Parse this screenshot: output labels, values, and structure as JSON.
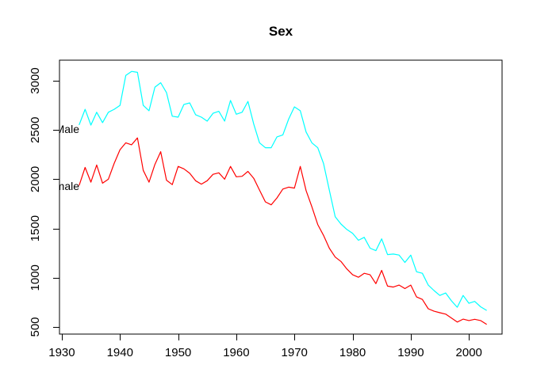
{
  "title": "Sex",
  "colors": {
    "background": "#ffffff",
    "axis": "#000000",
    "text": "#000000",
    "male_line": "#00ffff",
    "female_line": "#ff0000"
  },
  "chart_data": {
    "type": "line",
    "title": "Sex",
    "xlabel": "",
    "ylabel": "",
    "grid": false,
    "box": true,
    "xlim": [
      1929.6,
      2005.7
    ],
    "ylim": [
      427.7,
      3209.0
    ],
    "x_ticks": [
      1930,
      1940,
      1950,
      1960,
      1970,
      1980,
      1990,
      2000
    ],
    "y_ticks": [
      500,
      1000,
      1500,
      2000,
      2500,
      3000
    ],
    "years": [
      1933,
      1934,
      1935,
      1936,
      1937,
      1938,
      1939,
      1940,
      1941,
      1942,
      1943,
      1944,
      1945,
      1946,
      1947,
      1948,
      1949,
      1950,
      1951,
      1952,
      1953,
      1954,
      1955,
      1956,
      1957,
      1958,
      1959,
      1960,
      1961,
      1962,
      1963,
      1964,
      1965,
      1966,
      1967,
      1968,
      1969,
      1970,
      1971,
      1972,
      1973,
      1974,
      1975,
      1976,
      1977,
      1978,
      1979,
      1980,
      1981,
      1982,
      1983,
      1984,
      1985,
      1986,
      1987,
      1988,
      1989,
      1990,
      1991,
      1992,
      1993,
      1994,
      1995,
      1996,
      1997,
      1998,
      1999,
      2000,
      2001,
      2002,
      2003
    ],
    "legend_position": "labels-at-line-start-clipped",
    "series": [
      {
        "name": "Male",
        "label": "Male",
        "color": "#00ffff",
        "values": [
          2555,
          2710,
          2550,
          2680,
          2575,
          2680,
          2710,
          2750,
          3055,
          3095,
          3085,
          2750,
          2695,
          2935,
          2980,
          2880,
          2640,
          2630,
          2760,
          2775,
          2655,
          2630,
          2590,
          2670,
          2690,
          2590,
          2800,
          2660,
          2680,
          2790,
          2560,
          2370,
          2320,
          2320,
          2430,
          2450,
          2610,
          2735,
          2695,
          2480,
          2370,
          2320,
          2160,
          1890,
          1620,
          1545,
          1490,
          1450,
          1380,
          1410,
          1300,
          1275,
          1395,
          1235,
          1240,
          1230,
          1155,
          1230,
          1060,
          1045,
          925,
          870,
          820,
          845,
          765,
          700,
          820,
          740,
          760,
          705,
          670
        ]
      },
      {
        "name": "Female",
        "label": "Female",
        "color": "#ff0000",
        "values": [
          1940,
          2120,
          1970,
          2145,
          1960,
          2000,
          2160,
          2300,
          2370,
          2350,
          2420,
          2090,
          1970,
          2150,
          2280,
          1990,
          1945,
          2130,
          2105,
          2060,
          1985,
          1950,
          1985,
          2050,
          2065,
          2000,
          2130,
          2025,
          2030,
          2080,
          2010,
          1890,
          1770,
          1740,
          1810,
          1900,
          1920,
          1910,
          2130,
          1885,
          1720,
          1540,
          1430,
          1300,
          1210,
          1165,
          1090,
          1030,
          1005,
          1045,
          1030,
          940,
          1075,
          915,
          905,
          925,
          890,
          925,
          805,
          780,
          685,
          660,
          645,
          630,
          590,
          550,
          580,
          565,
          578,
          565,
          528
        ]
      }
    ]
  }
}
